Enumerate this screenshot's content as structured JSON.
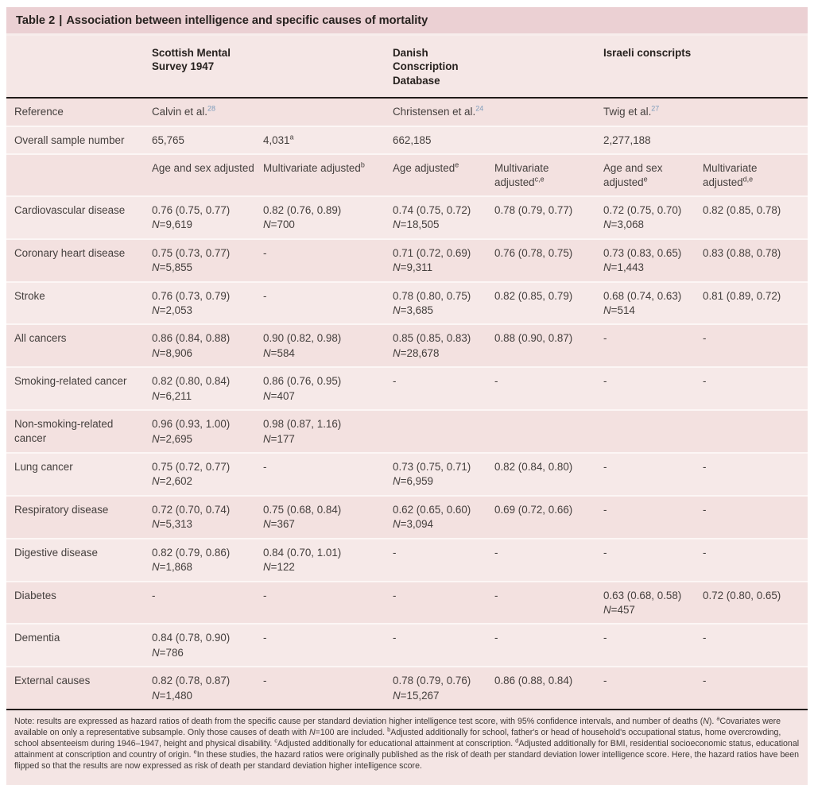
{
  "page": {
    "title": {
      "prefix": "Table 2",
      "divider": "|",
      "text": "Association between intelligence and specific causes of mortality"
    }
  },
  "colors": {
    "title_band": "#ebd0d3",
    "row_pink_dark": "#f3e1e0",
    "row_pink_light": "#f6e9e8",
    "rule_black": "#211c1a",
    "citation_blue": "#7d9cbb"
  },
  "table": {
    "n_label": "N",
    "eq": "=",
    "group_headers": [
      {
        "label": "Scottish Mental Survey 1947"
      },
      {
        "label": "Danish Conscription Database"
      },
      {
        "label": "Israeli conscripts"
      }
    ],
    "rows": [
      {
        "label": "Reference",
        "cells": [
          {
            "text": "Calvin et al.",
            "ref": "28"
          },
          {},
          {
            "text": "Christensen et al.",
            "ref": "24"
          },
          {},
          {
            "text": "Twig et al.",
            "ref": "27"
          },
          {}
        ]
      },
      {
        "label": "Overall sample number",
        "cells": [
          {
            "text": "65,765"
          },
          {
            "text": "4,031",
            "sup": "a"
          },
          {
            "text": "662,185"
          },
          {},
          {
            "text": "2,277,188"
          },
          {}
        ]
      },
      {
        "label": "",
        "cells": [
          {
            "text": "Age and sex adjusted"
          },
          {
            "text": "Multivariate adjusted",
            "sup": "b"
          },
          {
            "text": "Age adjusted",
            "sup": "e"
          },
          {
            "text": "Multivariate adjusted",
            "sup": "c,e"
          },
          {
            "text": "Age and sex adjusted",
            "sup": "e"
          },
          {
            "text": "Multivariate adjusted",
            "sup": "d,e"
          }
        ]
      },
      {
        "label": "Cardiovascular disease",
        "cells": [
          {
            "text": "0.76 (0.75, 0.77)",
            "n": "9,619"
          },
          {
            "text": "0.82 (0.76, 0.89)",
            "n": "700"
          },
          {
            "text": "0.74 (0.75, 0.72)",
            "n": "18,505"
          },
          {
            "text": "0.78 (0.79, 0.77)"
          },
          {
            "text": "0.72 (0.75, 0.70)",
            "n": "3,068"
          },
          {
            "text": "0.82 (0.85, 0.78)"
          }
        ]
      },
      {
        "label": "Coronary heart disease",
        "cells": [
          {
            "text": "0.75 (0.73, 0.77)",
            "n": "5,855"
          },
          {
            "text": "-"
          },
          {
            "text": "0.71 (0.72, 0.69)",
            "n": "9,311"
          },
          {
            "text": "0.76 (0.78, 0.75)"
          },
          {
            "text": "0.73 (0.83, 0.65)",
            "n": "1,443"
          },
          {
            "text": "0.83 (0.88, 0.78)"
          }
        ]
      },
      {
        "label": "Stroke",
        "cells": [
          {
            "text": "0.76 (0.73, 0.79)",
            "n": "2,053"
          },
          {
            "text": "-"
          },
          {
            "text": "0.78 (0.80, 0.75)",
            "n": "3,685"
          },
          {
            "text": "0.82 (0.85, 0.79)"
          },
          {
            "text": "0.68 (0.74, 0.63)",
            "n": "514"
          },
          {
            "text": "0.81 (0.89, 0.72)"
          }
        ]
      },
      {
        "label": "All cancers",
        "cells": [
          {
            "text": "0.86 (0.84, 0.88)",
            "n": "8,906"
          },
          {
            "text": "0.90 (0.82, 0.98)",
            "n": "584"
          },
          {
            "text": "0.85 (0.85, 0.83)",
            "n": "28,678"
          },
          {
            "text": "0.88 (0.90, 0.87)"
          },
          {
            "text": "-"
          },
          {
            "text": "-"
          }
        ]
      },
      {
        "label": "Smoking-related cancer",
        "cells": [
          {
            "text": "0.82 (0.80, 0.84)",
            "n": "6,211"
          },
          {
            "text": "0.86 (0.76, 0.95)",
            "n": "407"
          },
          {
            "text": "-"
          },
          {
            "text": "-"
          },
          {
            "text": "-"
          },
          {
            "text": "-"
          }
        ]
      },
      {
        "label": "Non-smoking-related cancer",
        "cells": [
          {
            "text": "0.96 (0.93, 1.00)",
            "n": "2,695"
          },
          {
            "text": "0.98 (0.87, 1.16)",
            "n": "177"
          },
          {},
          {},
          {},
          {}
        ]
      },
      {
        "label": "Lung cancer",
        "cells": [
          {
            "text": "0.75 (0.72, 0.77)",
            "n": "2,602"
          },
          {
            "text": "-"
          },
          {
            "text": "0.73 (0.75, 0.71)",
            "n": "6,959"
          },
          {
            "text": "0.82 (0.84, 0.80)"
          },
          {
            "text": "-"
          },
          {
            "text": "-"
          }
        ]
      },
      {
        "label": "Respiratory disease",
        "cells": [
          {
            "text": "0.72 (0.70, 0.74)",
            "n": "5,313"
          },
          {
            "text": "0.75 (0.68, 0.84)",
            "n": "367"
          },
          {
            "text": "0.62 (0.65, 0.60)",
            "n": "3,094"
          },
          {
            "text": "0.69 (0.72, 0.66)"
          },
          {
            "text": "-"
          },
          {
            "text": "-"
          }
        ]
      },
      {
        "label": "Digestive disease",
        "cells": [
          {
            "text": "0.82 (0.79, 0.86)",
            "n": "1,868"
          },
          {
            "text": "0.84 (0.70, 1.01)",
            "n": "122"
          },
          {
            "text": "-"
          },
          {
            "text": "-"
          },
          {
            "text": "-"
          },
          {
            "text": "-"
          }
        ]
      },
      {
        "label": "Diabetes",
        "cells": [
          {
            "text": "-"
          },
          {
            "text": "-"
          },
          {
            "text": "-"
          },
          {
            "text": "-"
          },
          {
            "text": "0.63 (0.68, 0.58)",
            "n": "457"
          },
          {
            "text": "0.72 (0.80, 0.65)"
          }
        ]
      },
      {
        "label": "Dementia",
        "cells": [
          {
            "text": "0.84 (0.78, 0.90)",
            "n": "786"
          },
          {
            "text": "-"
          },
          {
            "text": "-"
          },
          {
            "text": "-"
          },
          {
            "text": "-"
          },
          {
            "text": "-"
          }
        ]
      },
      {
        "label": "External causes",
        "cells": [
          {
            "text": "0.82 (0.78, 0.87)",
            "n": "1,480"
          },
          {
            "text": "-"
          },
          {
            "text": "0.78 (0.79, 0.76)",
            "n": "15,267"
          },
          {
            "text": "0.86 (0.88, 0.84)"
          },
          {
            "text": "-"
          },
          {
            "text": "-"
          }
        ]
      }
    ]
  },
  "footnote": {
    "segments": [
      {
        "text": "Note: results are expressed as hazard ratios of death from the specific cause per standard deviation higher intelligence test score, with 95% confidence intervals, and number of deaths ("
      },
      {
        "italic": "N"
      },
      {
        "text": "). "
      },
      {
        "sup": "a"
      },
      {
        "text": "Covariates were available on only a representative subsample. Only those causes of death with "
      },
      {
        "italic": "N"
      },
      {
        "text": "=100 are included. "
      },
      {
        "sup": "b"
      },
      {
        "text": "Adjusted additionally for school, father's or head of household's occupational status, home overcrowding, school absenteeism during 1946–1947, height and physical disability. "
      },
      {
        "sup": "c"
      },
      {
        "text": "Adjusted additionally for educational attainment at conscription. "
      },
      {
        "sup": "d"
      },
      {
        "text": "Adjusted additionally for BMI, residential socioeconomic status, educational attainment at conscription and country of origin. "
      },
      {
        "sup": "e"
      },
      {
        "text": "In these studies, the hazard ratios were originally published as the risk of death per standard deviation lower intelligence score. Here, the hazard ratios have been flipped so that the results are now expressed as risk of death per standard deviation higher intelligence score."
      }
    ]
  }
}
